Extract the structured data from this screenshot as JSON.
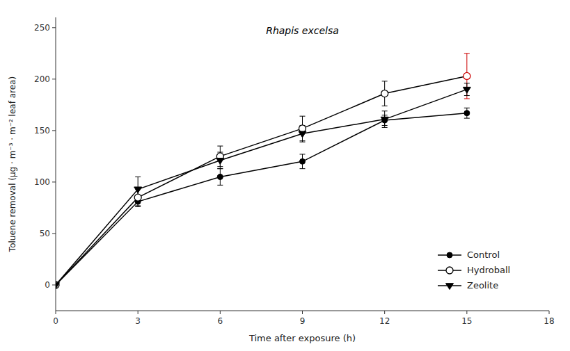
{
  "chart_data": {
    "type": "line",
    "xlabel": "Time after exposure (h)",
    "ylabel": "Toluene removal (μg · m⁻³ · m⁻² leaf area)",
    "annotation": "Rhapis excelsa",
    "x": [
      0,
      3,
      6,
      9,
      12,
      15
    ],
    "xlim": [
      0,
      18
    ],
    "ylim": [
      -25,
      260
    ],
    "xticks": [
      0,
      3,
      6,
      9,
      12,
      15,
      18
    ],
    "yticks": [
      0,
      50,
      100,
      150,
      200,
      250
    ],
    "grid": false,
    "legend": "lower right",
    "series": [
      {
        "name": "Control",
        "color": "#000000",
        "marker": "circle",
        "values": [
          0,
          81,
          105,
          120,
          160,
          167
        ],
        "errors": [
          0,
          5,
          8,
          7,
          5,
          5
        ]
      },
      {
        "name": "Hydroball",
        "color": "#000000",
        "marker": "circle-open",
        "colors": [
          "#000000",
          "#000000",
          "#000000",
          "#000000",
          "#000000",
          "#cc0000"
        ],
        "values": [
          0,
          85,
          125,
          152,
          186,
          203
        ],
        "errors": [
          0,
          8,
          10,
          12,
          12,
          22
        ]
      },
      {
        "name": "Zeolite",
        "color": "#000000",
        "marker": "triangle-down",
        "values": [
          0,
          93,
          121,
          147,
          161,
          190
        ],
        "errors": [
          0,
          12,
          8,
          8,
          8,
          6
        ]
      }
    ]
  }
}
